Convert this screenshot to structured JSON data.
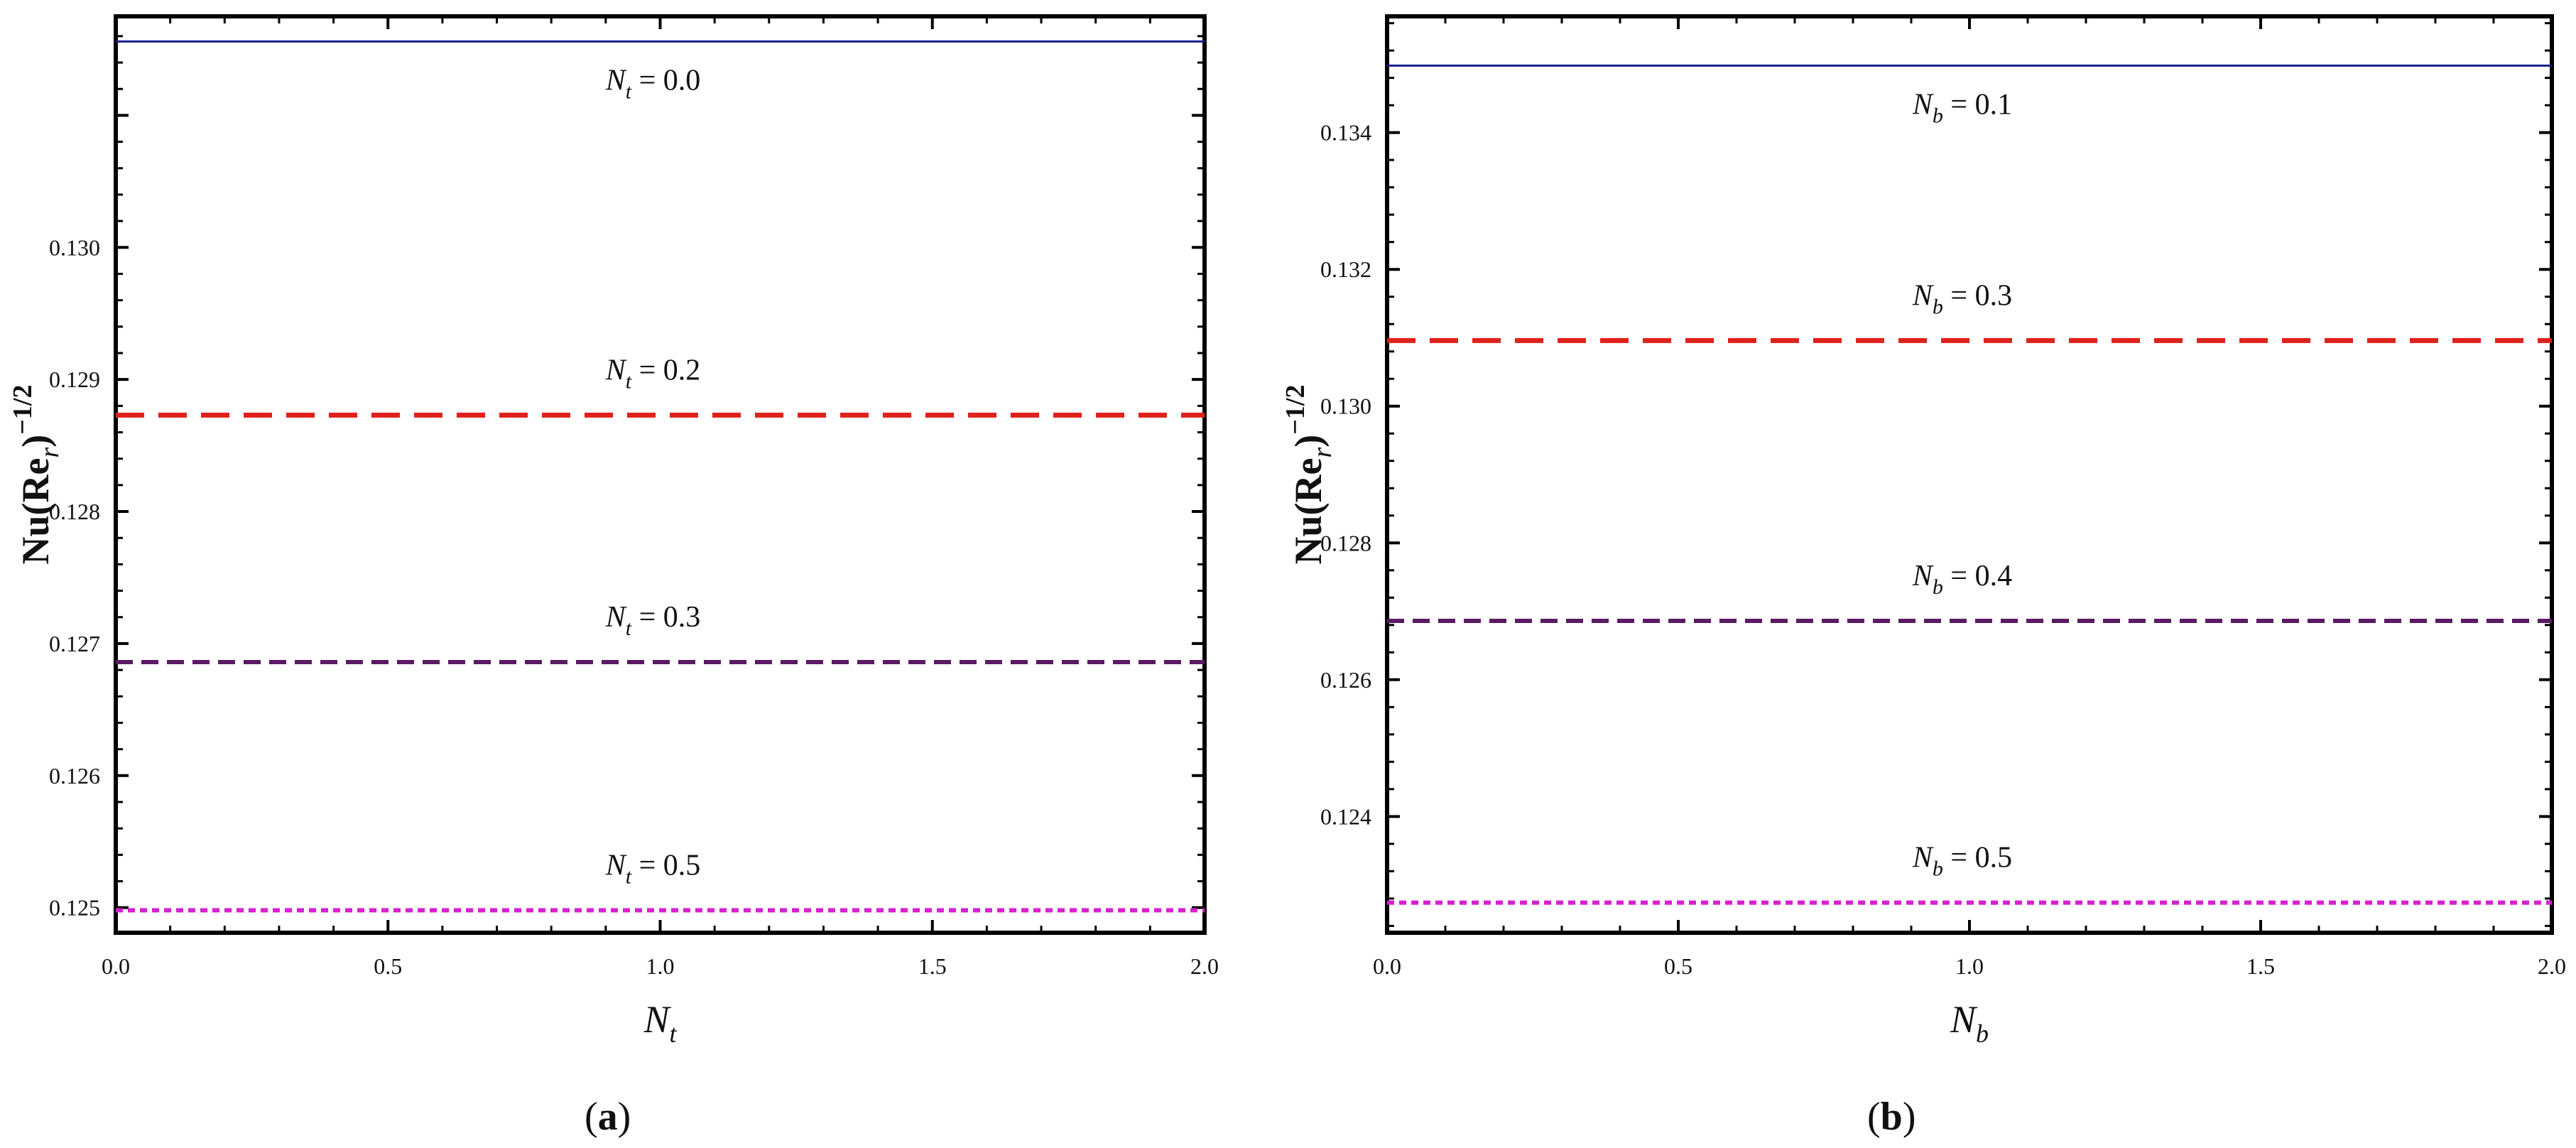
{
  "captions": [
    "a",
    "b"
  ],
  "chart_data": [
    {
      "type": "line",
      "xlabel": "N",
      "xlabel_sub": "t",
      "ylabel": "Nu(Re",
      "ylabel_sub": "r",
      "ylabel_tail": ")",
      "ylabel_sup": "−1/2",
      "xlim": [
        0,
        2.0
      ],
      "ylim": [
        0.12481,
        0.13175
      ],
      "x_ticks": [
        "0.0",
        "0.5",
        "1.0",
        "1.5",
        "2.0"
      ],
      "x_tick_values": [
        0,
        0.5,
        1.0,
        1.5,
        2.0
      ],
      "y_ticks": [
        "0.125",
        "0.126",
        "0.127",
        "0.128",
        "0.129",
        "0.130"
      ],
      "y_tick_values": [
        0.125,
        0.126,
        0.127,
        0.128,
        0.129,
        0.13
      ],
      "grid": false,
      "series": [
        {
          "label_var": "N",
          "label_sub": "t",
          "label_value": " = 0.0",
          "x": [
            0,
            2.0
          ],
          "y": [
            0.13156,
            0.13156
          ],
          "color": "#1a1f8c",
          "style": "solid"
        },
        {
          "label_var": "N",
          "label_sub": "t",
          "label_value": " = 0.2",
          "x": [
            0,
            2.0
          ],
          "y": [
            0.12873,
            0.12873
          ],
          "color": "#e0201b",
          "style": "longdash"
        },
        {
          "label_var": "N",
          "label_sub": "t",
          "label_value": " = 0.3",
          "x": [
            0,
            2.0
          ],
          "y": [
            0.12686,
            0.12686
          ],
          "color": "#5a1a64",
          "style": "dash"
        },
        {
          "label_var": "N",
          "label_sub": "t",
          "label_value": " = 0.5",
          "x": [
            0,
            2.0
          ],
          "y": [
            0.12498,
            0.12498
          ],
          "color": "#d820d0",
          "style": "dot"
        }
      ]
    },
    {
      "type": "line",
      "xlabel": "N",
      "xlabel_sub": "b",
      "ylabel": "Nu(Re",
      "ylabel_sub": "r",
      "ylabel_tail": ")",
      "ylabel_sup": "−1/2",
      "xlim": [
        0,
        2.0
      ],
      "ylim": [
        0.1223,
        0.1357
      ],
      "x_ticks": [
        "0.0",
        "0.5",
        "1.0",
        "1.5",
        "2.0"
      ],
      "x_tick_values": [
        0,
        0.5,
        1.0,
        1.5,
        2.0
      ],
      "y_ticks": [
        "0.124",
        "0.126",
        "0.128",
        "0.130",
        "0.132",
        "0.134"
      ],
      "y_tick_values": [
        0.124,
        0.126,
        0.128,
        0.13,
        0.132,
        0.134
      ],
      "grid": false,
      "series": [
        {
          "label_var": "N",
          "label_sub": "b",
          "label_value": " = 0.1",
          "x": [
            0,
            2.0
          ],
          "y": [
            0.13498,
            0.13498
          ],
          "color": "#1a1f8c",
          "style": "solid"
        },
        {
          "label_var": "N",
          "label_sub": "b",
          "label_value": " = 0.3",
          "x": [
            0,
            2.0
          ],
          "y": [
            0.13096,
            0.13096
          ],
          "color": "#e0201b",
          "style": "longdash"
        },
        {
          "label_var": "N",
          "label_sub": "b",
          "label_value": " = 0.4",
          "x": [
            0,
            2.0
          ],
          "y": [
            0.12686,
            0.12686
          ],
          "color": "#5a1a64",
          "style": "dash"
        },
        {
          "label_var": "N",
          "label_sub": "b",
          "label_value": " = 0.5",
          "x": [
            0,
            2.0
          ],
          "y": [
            0.12274,
            0.12274
          ],
          "color": "#d820d0",
          "style": "dot"
        }
      ]
    }
  ]
}
